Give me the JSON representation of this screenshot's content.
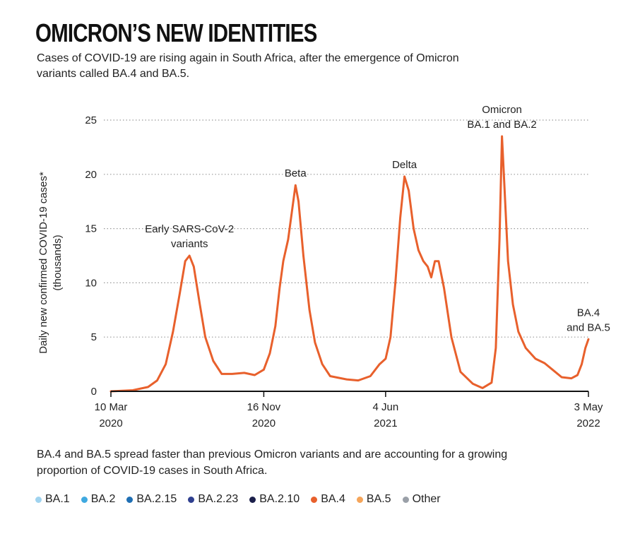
{
  "header": {
    "title": "OMICRON’S NEW IDENTITIES",
    "subtitle": "Cases of COVID-19 are rising again in South Africa, after the emergence of Omicron variants called BA.4 and BA.5."
  },
  "footnote": "BA.4 and BA.5 spread faster than previous Omicron variants and are accounting for a growing proportion of COVID-19 cases in South Africa.",
  "legend": [
    {
      "label": "BA.1",
      "color": "#9fd3ef"
    },
    {
      "label": "BA.2",
      "color": "#3fa9e0"
    },
    {
      "label": "BA.2.15",
      "color": "#1f6fb4"
    },
    {
      "label": "BA.2.23",
      "color": "#2f3f8f"
    },
    {
      "label": "BA.2.10",
      "color": "#1b1f4a"
    },
    {
      "label": "BA.4",
      "color": "#e8602c"
    },
    {
      "label": "BA.5",
      "color": "#f5a55a"
    },
    {
      "label": "Other",
      "color": "#9aa0a8"
    }
  ],
  "chart_data": {
    "type": "line",
    "ylabel_lines": [
      "Daily new confirmed COVID-19 cases*",
      "(thousands)"
    ],
    "ylim": [
      0,
      25
    ],
    "yticks": [
      0,
      5,
      10,
      15,
      20,
      25
    ],
    "grid": "dotted horizontal",
    "x_start": "2020-03-10",
    "x_end": "2022-05-03",
    "xticks": [
      {
        "date": "2020-03-10",
        "label_top": "10 Mar",
        "label_bottom": "2020"
      },
      {
        "date": "2020-11-16",
        "label_top": "16 Nov",
        "label_bottom": "2020"
      },
      {
        "date": "2021-06-04",
        "label_top": "4 Jun",
        "label_bottom": "2021"
      },
      {
        "date": "2022-05-03",
        "label_top": "3 May",
        "label_bottom": "2022"
      }
    ],
    "series": [
      {
        "color": "#e8602c",
        "points": [
          [
            "2020-03-10",
            0.0
          ],
          [
            "2020-04-15",
            0.1
          ],
          [
            "2020-05-10",
            0.4
          ],
          [
            "2020-05-25",
            1.0
          ],
          [
            "2020-06-08",
            2.5
          ],
          [
            "2020-06-20",
            5.5
          ],
          [
            "2020-07-01",
            9.0
          ],
          [
            "2020-07-10",
            12.0
          ],
          [
            "2020-07-17",
            12.5
          ],
          [
            "2020-07-24",
            11.5
          ],
          [
            "2020-08-03",
            8.0
          ],
          [
            "2020-08-12",
            5.0
          ],
          [
            "2020-08-25",
            2.8
          ],
          [
            "2020-09-08",
            1.6
          ],
          [
            "2020-09-25",
            1.6
          ],
          [
            "2020-10-15",
            1.7
          ],
          [
            "2020-11-01",
            1.5
          ],
          [
            "2020-11-16",
            2.0
          ],
          [
            "2020-11-26",
            3.5
          ],
          [
            "2020-12-05",
            6.0
          ],
          [
            "2020-12-12",
            9.5
          ],
          [
            "2020-12-18",
            12.0
          ],
          [
            "2020-12-26",
            14.0
          ],
          [
            "2021-01-01",
            16.5
          ],
          [
            "2021-01-07",
            19.0
          ],
          [
            "2021-01-12",
            17.5
          ],
          [
            "2021-01-20",
            12.5
          ],
          [
            "2021-01-30",
            7.5
          ],
          [
            "2021-02-08",
            4.5
          ],
          [
            "2021-02-20",
            2.5
          ],
          [
            "2021-03-05",
            1.4
          ],
          [
            "2021-04-01",
            1.1
          ],
          [
            "2021-04-20",
            1.0
          ],
          [
            "2021-05-10",
            1.4
          ],
          [
            "2021-05-25",
            2.5
          ],
          [
            "2021-06-04",
            3.0
          ],
          [
            "2021-06-12",
            5.0
          ],
          [
            "2021-06-20",
            10.0
          ],
          [
            "2021-06-28",
            16.0
          ],
          [
            "2021-07-05",
            19.8
          ],
          [
            "2021-07-12",
            18.5
          ],
          [
            "2021-07-20",
            15.0
          ],
          [
            "2021-07-28",
            13.0
          ],
          [
            "2021-08-05",
            12.0
          ],
          [
            "2021-08-12",
            11.5
          ],
          [
            "2021-08-18",
            10.5
          ],
          [
            "2021-08-24",
            12.0
          ],
          [
            "2021-08-30",
            12.0
          ],
          [
            "2021-09-08",
            9.5
          ],
          [
            "2021-09-20",
            5.0
          ],
          [
            "2021-10-05",
            1.8
          ],
          [
            "2021-10-25",
            0.7
          ],
          [
            "2021-11-10",
            0.3
          ],
          [
            "2021-11-25",
            0.8
          ],
          [
            "2021-12-02",
            4.0
          ],
          [
            "2021-12-08",
            14.0
          ],
          [
            "2021-12-12",
            23.5
          ],
          [
            "2021-12-16",
            19.0
          ],
          [
            "2021-12-22",
            12.0
          ],
          [
            "2021-12-30",
            8.0
          ],
          [
            "2022-01-08",
            5.5
          ],
          [
            "2022-01-20",
            4.0
          ],
          [
            "2022-02-05",
            3.0
          ],
          [
            "2022-02-20",
            2.6
          ],
          [
            "2022-03-05",
            2.0
          ],
          [
            "2022-03-20",
            1.3
          ],
          [
            "2022-04-05",
            1.2
          ],
          [
            "2022-04-15",
            1.5
          ],
          [
            "2022-04-22",
            2.5
          ],
          [
            "2022-04-28",
            4.0
          ],
          [
            "2022-05-03",
            4.8
          ]
        ]
      }
    ],
    "annotations": [
      {
        "lines": [
          "Early SARS-CoV-2",
          "variants"
        ],
        "date": "2020-07-17",
        "y": 12.5
      },
      {
        "lines": [
          "Beta"
        ],
        "date": "2021-01-07",
        "y": 19.0
      },
      {
        "lines": [
          "Delta"
        ],
        "date": "2021-07-05",
        "y": 19.8
      },
      {
        "lines": [
          "Omicron",
          "BA.1 and BA.2"
        ],
        "date": "2021-12-12",
        "y": 23.5
      },
      {
        "lines": [
          "BA.4",
          "and BA.5"
        ],
        "date": "2022-05-03",
        "y": 4.8
      }
    ]
  }
}
